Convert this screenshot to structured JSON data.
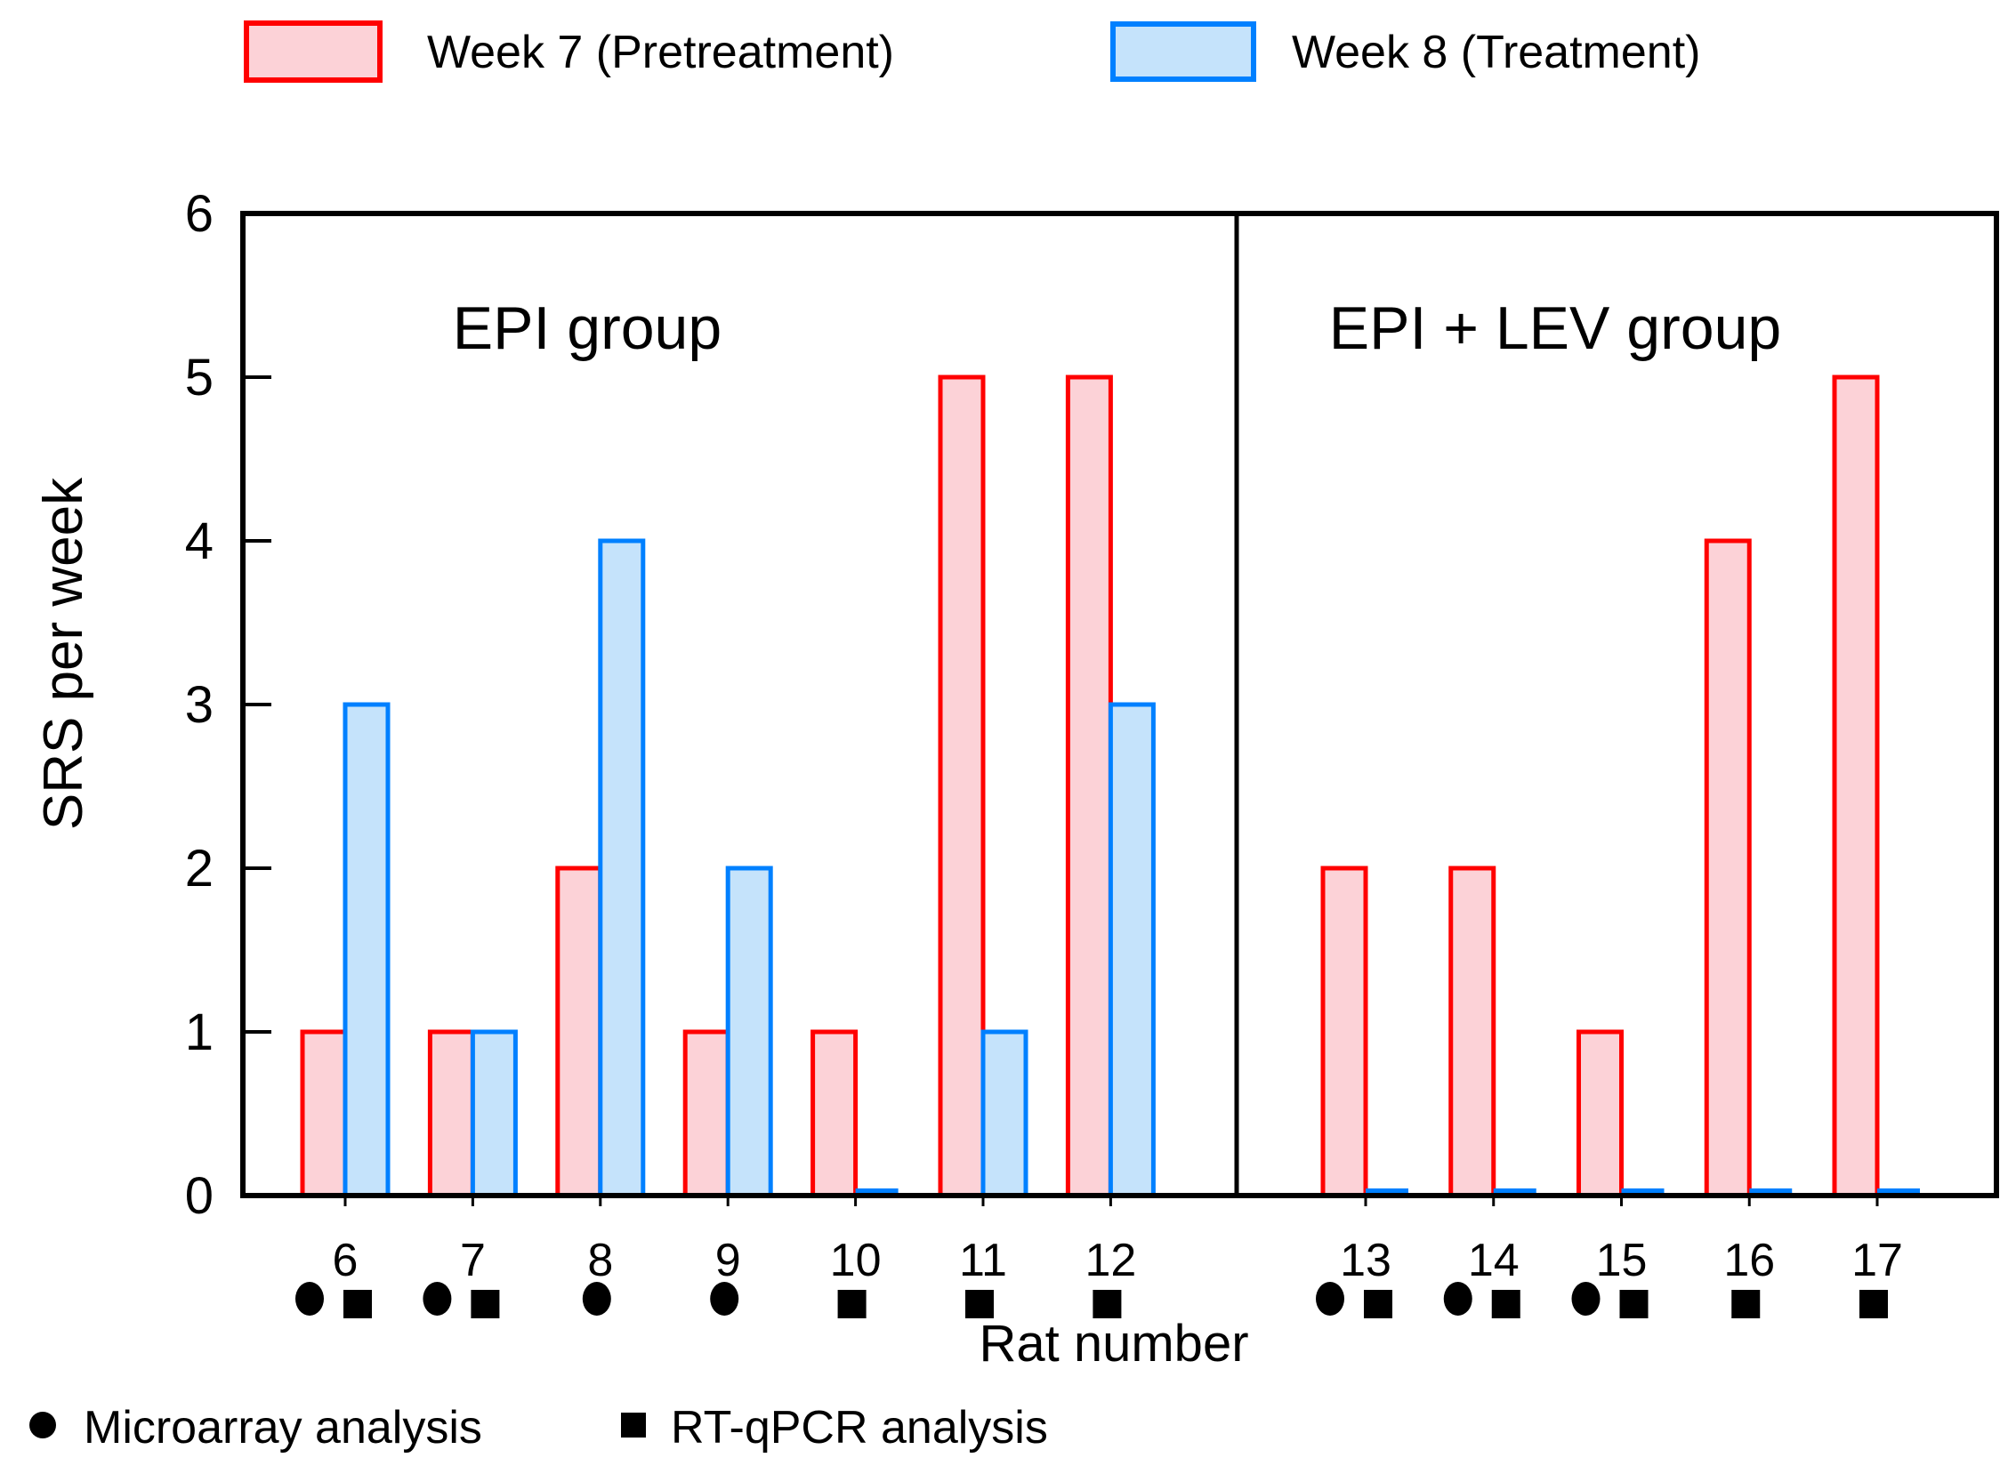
{
  "legend": {
    "week7": {
      "label": "Week 7 (Pretreatment)",
      "stroke": "#ff0000",
      "fill": "#fcd2d7"
    },
    "week8": {
      "label": "Week 8 (Treatment)",
      "stroke": "#0080ff",
      "fill": "#c5e3fb"
    }
  },
  "chart_data": {
    "type": "bar",
    "title": "",
    "ylabel": "SRS per week",
    "xlabel": "Rat number",
    "ylim": [
      0,
      6
    ],
    "y_ticks": [
      0,
      1,
      2,
      3,
      4,
      5,
      6
    ],
    "grid": false,
    "legend_position": "top",
    "series": [
      {
        "name": "Week 7 (Pretreatment)",
        "color": "#ff0000"
      },
      {
        "name": "Week 8 (Treatment)",
        "color": "#0080ff"
      }
    ],
    "categories": [
      "6",
      "7",
      "8",
      "9",
      "10",
      "11",
      "12",
      "13",
      "14",
      "15",
      "16",
      "17"
    ],
    "panels": [
      {
        "name": "EPI group",
        "rats": [
          {
            "label": "6",
            "week7": 1,
            "week8": 3,
            "microarray": true,
            "rtqpcr": true
          },
          {
            "label": "7",
            "week7": 1,
            "week8": 1,
            "microarray": true,
            "rtqpcr": true
          },
          {
            "label": "8",
            "week7": 2,
            "week8": 4,
            "microarray": true,
            "rtqpcr": false
          },
          {
            "label": "9",
            "week7": 1,
            "week8": 2,
            "microarray": true,
            "rtqpcr": false
          },
          {
            "label": "10",
            "week7": 1,
            "week8": 0,
            "microarray": false,
            "rtqpcr": true
          },
          {
            "label": "11",
            "week7": 5,
            "week8": 1,
            "microarray": false,
            "rtqpcr": true
          },
          {
            "label": "12",
            "week7": 5,
            "week8": 3,
            "microarray": false,
            "rtqpcr": true
          }
        ]
      },
      {
        "name": "EPI + LEV group",
        "rats": [
          {
            "label": "13",
            "week7": 2,
            "week8": 0,
            "microarray": true,
            "rtqpcr": true
          },
          {
            "label": "14",
            "week7": 2,
            "week8": 0,
            "microarray": true,
            "rtqpcr": true
          },
          {
            "label": "15",
            "week7": 1,
            "week8": 0,
            "microarray": true,
            "rtqpcr": true
          },
          {
            "label": "16",
            "week7": 4,
            "week8": 0,
            "microarray": false,
            "rtqpcr": true
          },
          {
            "label": "17",
            "week7": 5,
            "week8": 0,
            "microarray": false,
            "rtqpcr": true
          }
        ]
      }
    ],
    "marker_legend": [
      {
        "symbol": "circle",
        "label": "Microarray analysis"
      },
      {
        "symbol": "square",
        "label": "RT-qPCR analysis"
      }
    ]
  }
}
